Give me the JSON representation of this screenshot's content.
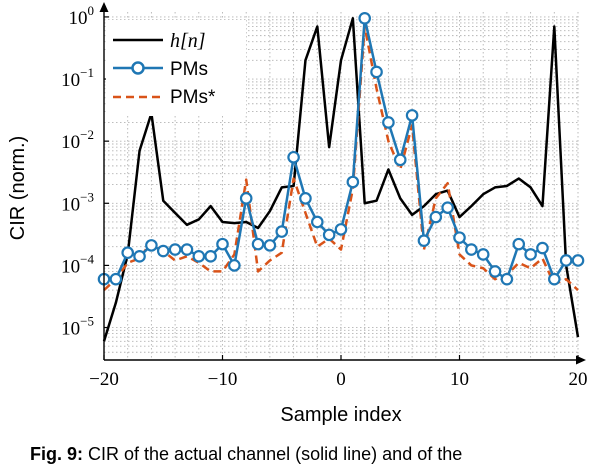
{
  "chart_data": {
    "type": "line",
    "xlabel": "Sample index",
    "ylabel": "CIR (norm.)",
    "yscale": "log",
    "xlim": [
      -20,
      20
    ],
    "ylim": [
      3e-06,
      1.2
    ],
    "xticks": [
      -20,
      -10,
      0,
      10,
      20
    ],
    "xtick_labels": [
      "−20",
      "−10",
      "0",
      "10",
      "20"
    ],
    "yticks": [
      1e-05,
      0.0001,
      0.001,
      0.01,
      0.1,
      1
    ],
    "ytick_exponents": [
      "−5",
      "−4",
      "−3",
      "−2",
      "−1",
      "0"
    ],
    "ytick_base": "10",
    "grid": true,
    "legend_position": "top-left",
    "x": [
      -20,
      -19,
      -18,
      -17,
      -16,
      -15,
      -14,
      -13,
      -12,
      -11,
      -10,
      -9,
      -8,
      -7,
      -6,
      -5,
      -4,
      -3,
      -2,
      -1,
      0,
      1,
      2,
      3,
      4,
      5,
      6,
      7,
      8,
      9,
      10,
      11,
      12,
      13,
      14,
      15,
      16,
      17,
      18,
      19,
      20
    ],
    "series": [
      {
        "name": "h[n]",
        "color": "#000000",
        "style": "solid",
        "values": [
          6e-06,
          2.5e-05,
          0.00015,
          0.007,
          0.028,
          0.0011,
          0.0007,
          0.00045,
          0.00055,
          0.0009,
          0.0005,
          0.00048,
          0.0005,
          0.0004,
          0.00075,
          0.0018,
          0.0019,
          0.2,
          0.7,
          0.008,
          0.2,
          0.95,
          0.001,
          0.0011,
          0.0035,
          0.0012,
          0.00065,
          0.0009,
          0.0014,
          0.0016,
          0.0006,
          0.0009,
          0.0014,
          0.0018,
          0.0019,
          0.0025,
          0.0018,
          0.0009,
          0.7,
          0.0001,
          7e-06
        ]
      },
      {
        "name": "PMs",
        "color": "#1f77b4",
        "style": "solid-markers",
        "values": [
          6e-05,
          6e-05,
          0.00016,
          0.00014,
          0.00021,
          0.00017,
          0.00018,
          0.00018,
          0.00014,
          0.00014,
          0.00022,
          0.0001,
          0.0012,
          0.00022,
          0.00021,
          0.00035,
          0.0055,
          0.0012,
          0.0005,
          0.00031,
          0.00038,
          0.0022,
          0.95,
          0.13,
          0.02,
          0.005,
          0.026,
          0.00025,
          0.0006,
          0.00085,
          0.00028,
          0.00018,
          0.00015,
          8e-05,
          6e-05,
          0.00022,
          0.00015,
          0.00019,
          6e-05,
          0.00012,
          0.00012
        ]
      },
      {
        "name": "PMs*",
        "color": "#d95319",
        "style": "dashed",
        "values": [
          4e-05,
          6e-05,
          0.00011,
          0.00013,
          0.00024,
          0.00017,
          0.00012,
          0.00014,
          0.00011,
          8e-05,
          8e-05,
          0.00015,
          0.0024,
          8e-05,
          0.00012,
          0.00016,
          0.0025,
          0.0007,
          0.0002,
          0.00027,
          0.00018,
          0.0017,
          0.7,
          0.07,
          0.01,
          0.0035,
          0.018,
          0.00018,
          0.0012,
          0.0021,
          0.00015,
          0.0001,
          9e-05,
          6e-05,
          7e-05,
          0.00011,
          9e-05,
          0.00013,
          5e-05,
          6e-05,
          4e-05
        ]
      }
    ]
  },
  "caption": {
    "label": "Fig. 9:",
    "text": "CIR of the actual channel (solid line) and of the"
  }
}
